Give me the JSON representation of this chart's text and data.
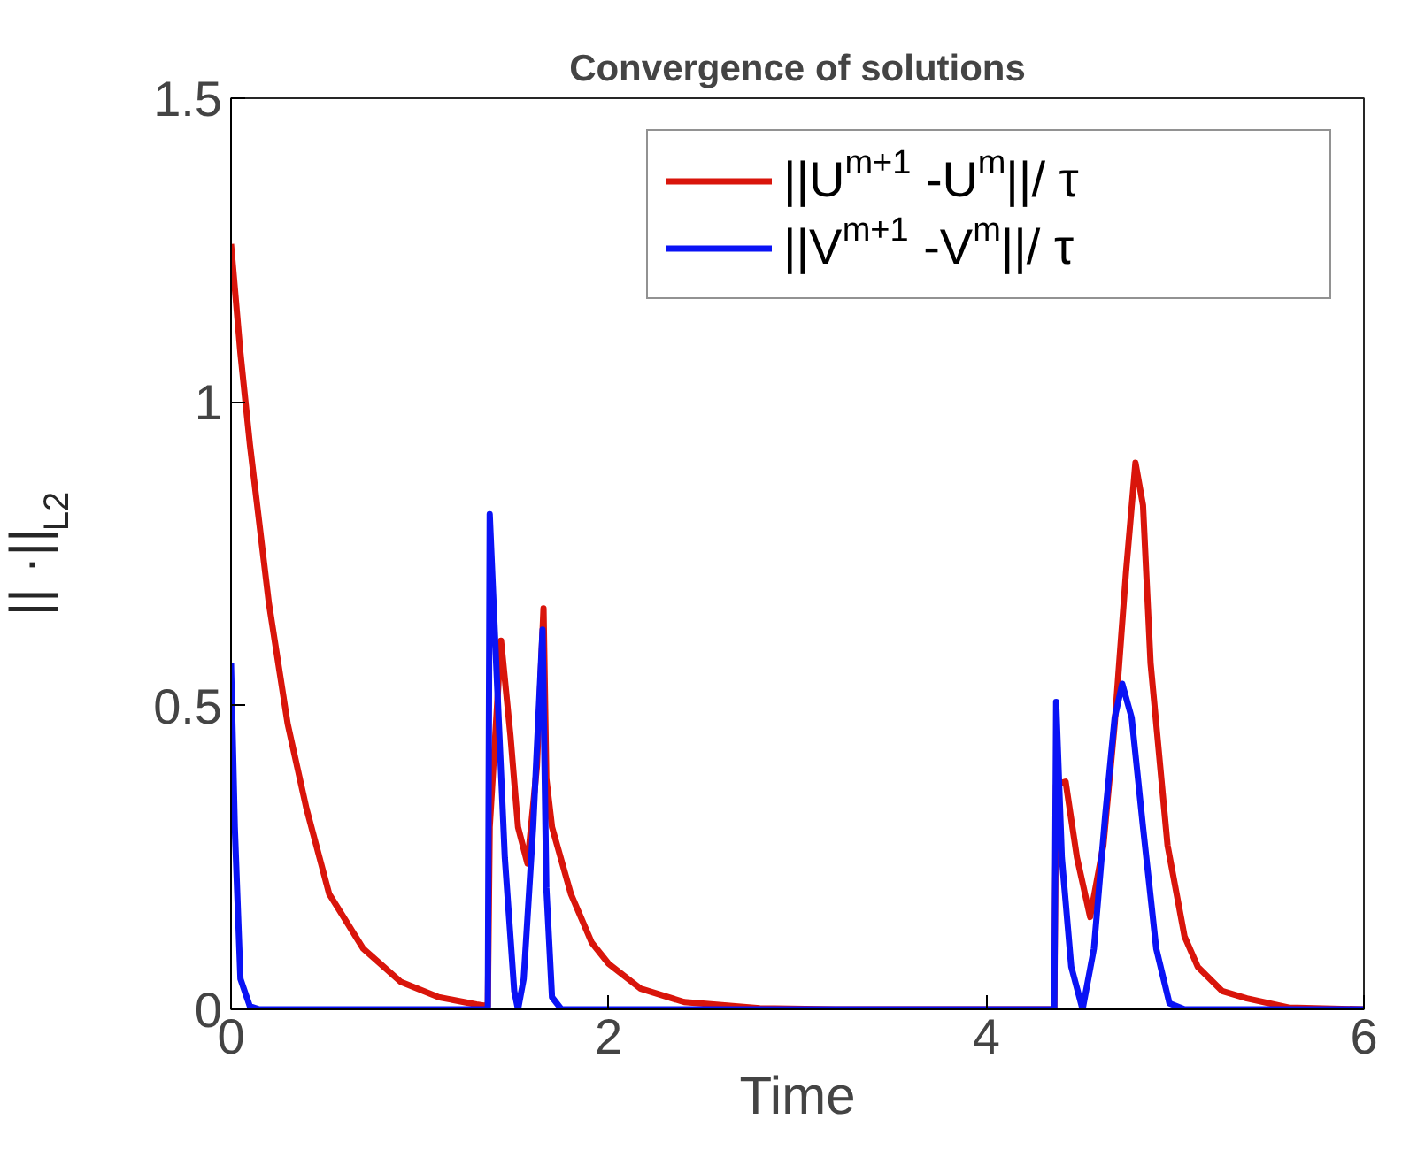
{
  "chart_data": {
    "type": "line",
    "title": "Convergence of solutions",
    "xlabel": "Time",
    "ylabel": "|| ·||$_{L2}$",
    "xlim": [
      0,
      6
    ],
    "xticks": [
      0,
      2,
      4,
      6
    ],
    "ylim": [
      0,
      1.5
    ],
    "yticks": [
      0,
      0.5,
      1,
      1.5
    ],
    "grid": false,
    "legend": "top right",
    "line_style": "solid",
    "series": [
      {
        "name": "||U$^{m+1}$ -U$^{m}$||/ τ",
        "color": "#d9150b",
        "x": [
          0,
          0.05,
          0.1,
          0.2,
          0.3,
          0.4,
          0.52,
          0.7,
          0.9,
          1.1,
          1.3,
          1.36,
          1.37,
          1.43,
          1.48,
          1.52,
          1.57,
          1.62,
          1.655,
          1.67,
          1.7,
          1.8,
          1.91,
          2.0,
          2.17,
          2.4,
          2.8,
          3.2,
          4.36,
          4.37,
          4.42,
          4.48,
          4.55,
          4.62,
          4.68,
          4.74,
          4.79,
          4.83,
          4.87,
          4.96,
          5.05,
          5.12,
          5.25,
          5.38,
          5.6,
          6
        ],
        "values": [
          1.26,
          1.08,
          0.93,
          0.67,
          0.47,
          0.33,
          0.19,
          0.1,
          0.045,
          0.02,
          0.008,
          0.005,
          0.3,
          0.607,
          0.45,
          0.3,
          0.24,
          0.4,
          0.66,
          0.38,
          0.3,
          0.19,
          0.11,
          0.075,
          0.034,
          0.012,
          0.002,
          0,
          0,
          0.37,
          0.375,
          0.25,
          0.152,
          0.27,
          0.47,
          0.72,
          0.9,
          0.83,
          0.57,
          0.27,
          0.12,
          0.07,
          0.03,
          0.018,
          0.003,
          0
        ]
      },
      {
        "name": "||V$^{m+1}$ -V$^{m}$||/ τ",
        "color": "#0a13f5",
        "x": [
          0,
          0.02,
          0.05,
          0.1,
          0.15,
          1.36,
          1.37,
          1.4,
          1.45,
          1.5,
          1.52,
          1.55,
          1.6,
          1.65,
          1.67,
          1.7,
          1.75,
          4.36,
          4.37,
          4.4,
          4.45,
          4.51,
          4.57,
          4.63,
          4.68,
          4.72,
          4.77,
          4.83,
          4.9,
          4.97,
          5.05,
          6
        ],
        "values": [
          0.57,
          0.3,
          0.05,
          0.005,
          0,
          0,
          0.815,
          0.6,
          0.25,
          0.03,
          0,
          0.05,
          0.3,
          0.625,
          0.2,
          0.02,
          0,
          0,
          0.506,
          0.25,
          0.07,
          0,
          0.1,
          0.32,
          0.48,
          0.536,
          0.48,
          0.3,
          0.1,
          0.01,
          0,
          0
        ]
      }
    ]
  }
}
